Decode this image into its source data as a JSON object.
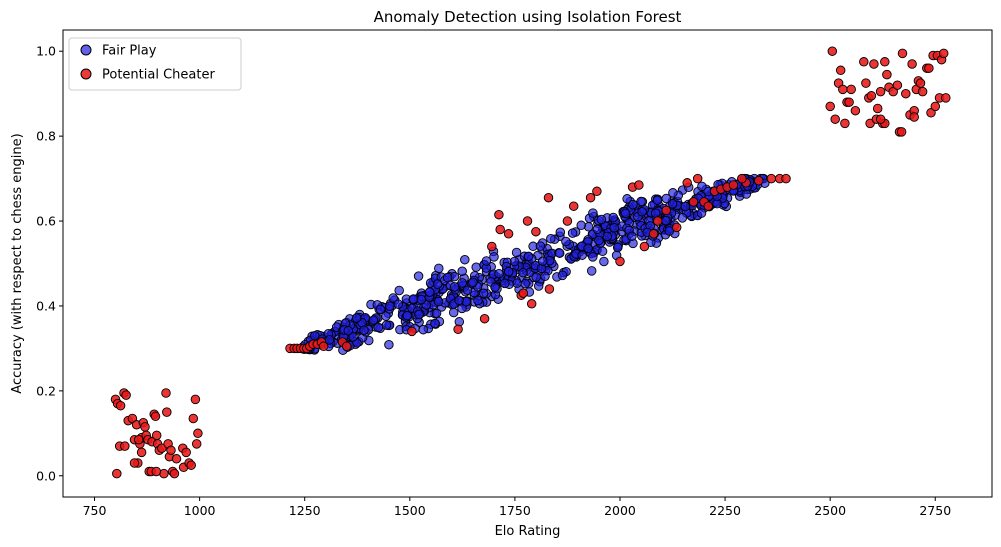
{
  "chart_data": {
    "type": "scatter",
    "title": "Anomaly Detection using Isolation Forest",
    "xlabel": "Elo Rating",
    "ylabel": "Accuracy (with respect to chess engine)",
    "xlim": [
      675,
      2885
    ],
    "ylim": [
      -0.05,
      1.05
    ],
    "xticks": [
      750,
      1000,
      1250,
      1500,
      1750,
      2000,
      2250,
      2500,
      2750
    ],
    "yticks": [
      0.0,
      0.2,
      0.4,
      0.6,
      0.8,
      1.0
    ],
    "xtick_labels": [
      "750",
      "1000",
      "1250",
      "1500",
      "1750",
      "2000",
      "2250",
      "2500",
      "2750"
    ],
    "ytick_labels": [
      "0.0",
      "0.2",
      "0.4",
      "0.6",
      "0.8",
      "1.0"
    ],
    "grid": false,
    "legend_position": "top-left",
    "series": [
      {
        "name": "Fair Play",
        "color": "#2020e0",
        "edge": "#000000",
        "generator": {
          "x_start": 1245,
          "x_end": 2345,
          "count": 720,
          "y_at_start": 0.3,
          "y_at_end": 0.7,
          "y_cap": 0.7
        }
      },
      {
        "name": "Potential Cheater",
        "color": "#e81818",
        "edge": "#000000",
        "points": [
          [
            800,
            0.18
          ],
          [
            805,
            0.17
          ],
          [
            812,
            0.165
          ],
          [
            820,
            0.195
          ],
          [
            825,
            0.19
          ],
          [
            830,
            0.13
          ],
          [
            810,
            0.07
          ],
          [
            803,
            0.005
          ],
          [
            822,
            0.07
          ],
          [
            840,
            0.135
          ],
          [
            845,
            0.085
          ],
          [
            850,
            0.12
          ],
          [
            853,
            0.03
          ],
          [
            858,
            0.075
          ],
          [
            862,
            0.09
          ],
          [
            866,
            0.125
          ],
          [
            870,
            0.115
          ],
          [
            873,
            0.095
          ],
          [
            877,
            0.085
          ],
          [
            880,
            0.01
          ],
          [
            885,
            0.01
          ],
          [
            887,
            0.08
          ],
          [
            892,
            0.145
          ],
          [
            895,
            0.14
          ],
          [
            898,
            0.095
          ],
          [
            900,
            0.075
          ],
          [
            904,
            0.06
          ],
          [
            910,
            0.065
          ],
          [
            915,
            0.005
          ],
          [
            920,
            0.195
          ],
          [
            922,
            0.15
          ],
          [
            925,
            0.075
          ],
          [
            928,
            0.045
          ],
          [
            932,
            0.06
          ],
          [
            936,
            0.01
          ],
          [
            940,
            0.005
          ],
          [
            945,
            0.04
          ],
          [
            960,
            0.065
          ],
          [
            962,
            0.02
          ],
          [
            968,
            0.055
          ],
          [
            975,
            0.03
          ],
          [
            980,
            0.025
          ],
          [
            985,
            0.135
          ],
          [
            990,
            0.18
          ],
          [
            993,
            0.075
          ],
          [
            996,
            0.1
          ],
          [
            845,
            0.03
          ],
          [
            862,
            0.055
          ],
          [
            897,
            0.01
          ],
          [
            855,
            0.085
          ],
          [
            2500,
            0.87
          ],
          [
            2505,
            1.0
          ],
          [
            2512,
            0.84
          ],
          [
            2520,
            0.925
          ],
          [
            2525,
            0.955
          ],
          [
            2530,
            0.91
          ],
          [
            2535,
            0.83
          ],
          [
            2540,
            0.88
          ],
          [
            2545,
            0.88
          ],
          [
            2550,
            0.91
          ],
          [
            2580,
            0.975
          ],
          [
            2585,
            0.925
          ],
          [
            2592,
            0.89
          ],
          [
            2595,
            0.83
          ],
          [
            2598,
            0.895
          ],
          [
            2604,
            0.97
          ],
          [
            2610,
            0.84
          ],
          [
            2613,
            0.865
          ],
          [
            2620,
            0.905
          ],
          [
            2625,
            0.83
          ],
          [
            2630,
            0.83
          ],
          [
            2635,
            0.945
          ],
          [
            2640,
            0.915
          ],
          [
            2650,
            0.905
          ],
          [
            2660,
            0.92
          ],
          [
            2665,
            0.81
          ],
          [
            2670,
            0.81
          ],
          [
            2672,
            0.995
          ],
          [
            2680,
            0.9
          ],
          [
            2690,
            0.85
          ],
          [
            2695,
            0.97
          ],
          [
            2700,
            0.86
          ],
          [
            2705,
            0.91
          ],
          [
            2710,
            0.93
          ],
          [
            2715,
            0.925
          ],
          [
            2720,
            0.905
          ],
          [
            2730,
            0.96
          ],
          [
            2735,
            0.96
          ],
          [
            2740,
            0.855
          ],
          [
            2745,
            0.99
          ],
          [
            2750,
            0.87
          ],
          [
            2755,
            0.99
          ],
          [
            2760,
            0.89
          ],
          [
            2765,
            0.98
          ],
          [
            2770,
            0.995
          ],
          [
            2775,
            0.89
          ],
          [
            2630,
            0.975
          ],
          [
            2700,
            0.845
          ],
          [
            2560,
            0.86
          ],
          [
            2620,
            0.84
          ],
          [
            1215,
            0.3
          ],
          [
            1225,
            0.3
          ],
          [
            1232,
            0.3
          ],
          [
            1240,
            0.3
          ],
          [
            1248,
            0.3
          ],
          [
            1255,
            0.3
          ],
          [
            1262,
            0.305
          ],
          [
            1270,
            0.31
          ],
          [
            1280,
            0.31
          ],
          [
            1290,
            0.315
          ],
          [
            1295,
            0.305
          ],
          [
            1340,
            0.315
          ],
          [
            1350,
            0.305
          ],
          [
            1505,
            0.34
          ],
          [
            1615,
            0.345
          ],
          [
            1678,
            0.37
          ],
          [
            1695,
            0.54
          ],
          [
            1712,
            0.615
          ],
          [
            1715,
            0.58
          ],
          [
            1735,
            0.57
          ],
          [
            1765,
            0.425
          ],
          [
            1770,
            0.43
          ],
          [
            1780,
            0.6
          ],
          [
            1790,
            0.405
          ],
          [
            1800,
            0.575
          ],
          [
            1830,
            0.655
          ],
          [
            1832,
            0.44
          ],
          [
            1875,
            0.6
          ],
          [
            1890,
            0.635
          ],
          [
            1930,
            0.655
          ],
          [
            1945,
            0.67
          ],
          [
            2000,
            0.505
          ],
          [
            2030,
            0.68
          ],
          [
            2045,
            0.685
          ],
          [
            2058,
            0.54
          ],
          [
            2080,
            0.57
          ],
          [
            2090,
            0.6
          ],
          [
            2110,
            0.625
          ],
          [
            2135,
            0.585
          ],
          [
            2160,
            0.69
          ],
          [
            2175,
            0.645
          ],
          [
            2185,
            0.7
          ],
          [
            2200,
            0.645
          ],
          [
            2210,
            0.635
          ],
          [
            2225,
            0.67
          ],
          [
            2240,
            0.675
          ],
          [
            2255,
            0.68
          ],
          [
            2270,
            0.685
          ],
          [
            2300,
            0.69
          ],
          [
            2330,
            0.695
          ],
          [
            2360,
            0.7
          ],
          [
            2380,
            0.7
          ],
          [
            2395,
            0.7
          ],
          [
            2290,
            0.7
          ]
        ]
      }
    ]
  }
}
